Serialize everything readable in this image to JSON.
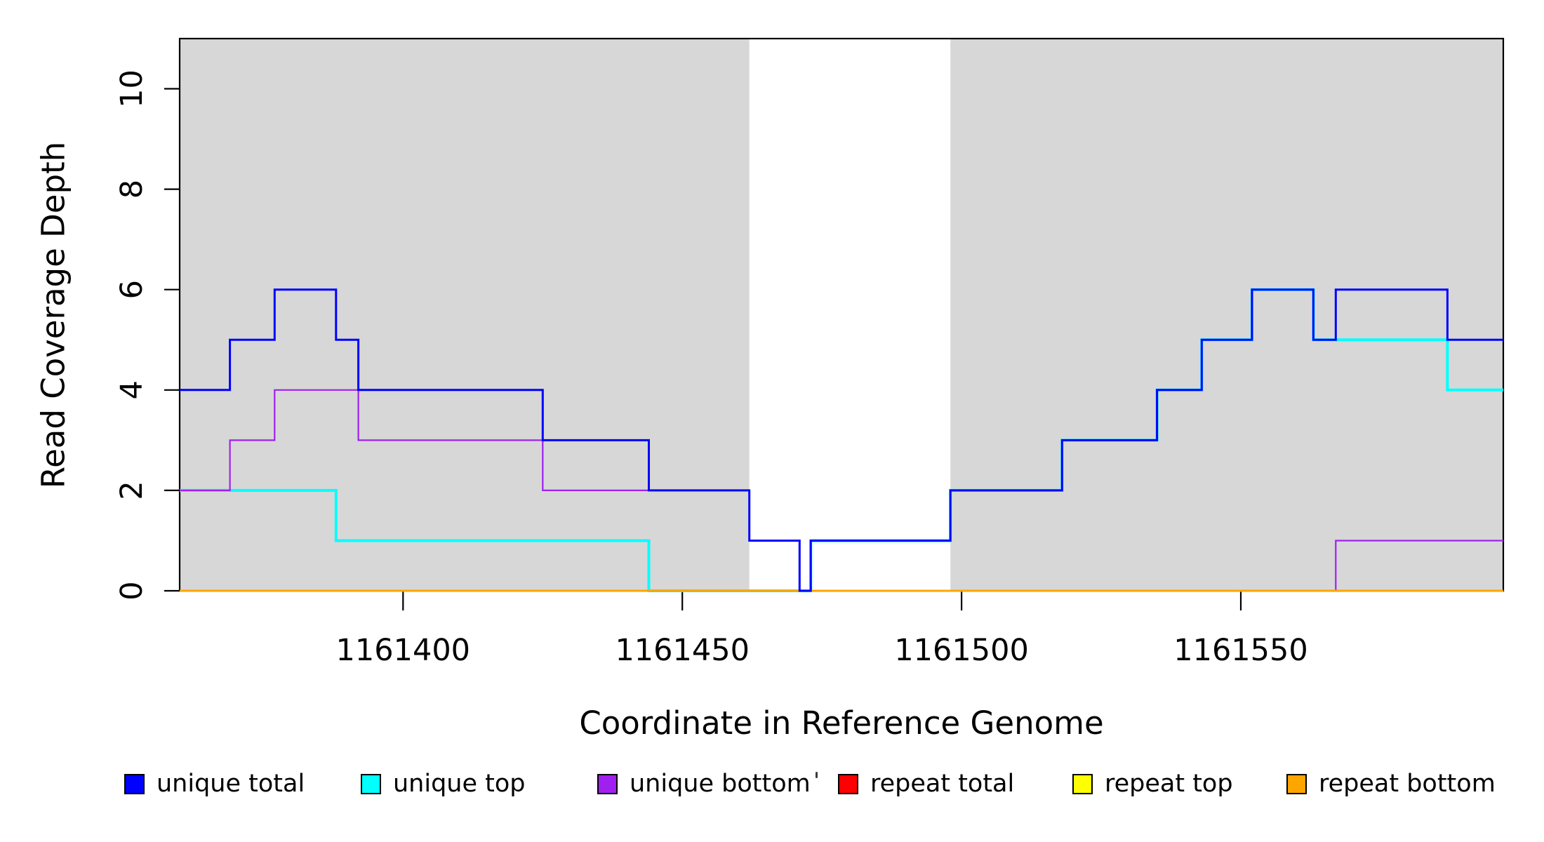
{
  "chart_data": {
    "type": "step",
    "title": "",
    "xlabel": "Coordinate in Reference Genome",
    "ylabel": "Read Coverage Depth",
    "x_range": [
      1161360,
      1161597
    ],
    "y_range": [
      0,
      11
    ],
    "x_ticks": [
      1161400,
      1161450,
      1161500,
      1161550
    ],
    "y_ticks": [
      0,
      2,
      4,
      6,
      8,
      10
    ],
    "grid": false,
    "legend_position": "bottom",
    "shade_color": "#d7d7d7",
    "shaded_regions": [
      {
        "from": 1161360,
        "to": 1161462
      },
      {
        "from": 1161498,
        "to": 1161597
      }
    ],
    "series": [
      {
        "name": "unique total",
        "color": "#0000ff",
        "width": 3.0,
        "z": 6,
        "steps": [
          [
            1161360,
            4
          ],
          [
            1161369,
            5
          ],
          [
            1161377,
            6
          ],
          [
            1161388,
            5
          ],
          [
            1161392,
            4
          ],
          [
            1161425,
            3
          ],
          [
            1161444,
            2
          ],
          [
            1161462,
            1
          ],
          [
            1161471,
            0
          ],
          [
            1161473,
            1
          ],
          [
            1161498,
            2
          ],
          [
            1161518,
            3
          ],
          [
            1161535,
            4
          ],
          [
            1161543,
            5
          ],
          [
            1161552,
            6
          ],
          [
            1161563,
            5
          ],
          [
            1161567,
            6
          ],
          [
            1161587,
            5
          ]
        ]
      },
      {
        "name": "unique top",
        "color": "#00ffff",
        "width": 4.0,
        "z": 3,
        "steps": [
          [
            1161360,
            2
          ],
          [
            1161388,
            1
          ],
          [
            1161444,
            0
          ],
          [
            1161473,
            1
          ],
          [
            1161498,
            2
          ],
          [
            1161518,
            3
          ],
          [
            1161535,
            4
          ],
          [
            1161543,
            5
          ],
          [
            1161552,
            6
          ],
          [
            1161563,
            5
          ],
          [
            1161587,
            4
          ]
        ]
      },
      {
        "name": "unique bottom",
        "color": "#a020f0",
        "width": 2.2,
        "z": 4,
        "steps": [
          [
            1161360,
            2
          ],
          [
            1161369,
            3
          ],
          [
            1161377,
            4
          ],
          [
            1161392,
            3
          ],
          [
            1161425,
            2
          ],
          [
            1161462,
            1
          ],
          [
            1161471,
            0
          ],
          [
            1161567,
            1
          ]
        ]
      },
      {
        "name": "repeat total",
        "color": "#ff0000",
        "width": 3.0,
        "z": 1,
        "steps": [
          [
            1161360,
            0
          ]
        ]
      },
      {
        "name": "repeat top",
        "color": "#ffff00",
        "width": 3.0,
        "z": 2,
        "steps": [
          [
            1161360,
            0
          ]
        ]
      },
      {
        "name": "repeat bottom",
        "color": "#ffa500",
        "width": 3.0,
        "z": 5,
        "steps": [
          [
            1161360,
            0
          ]
        ]
      }
    ]
  },
  "legend": {
    "items": [
      {
        "label": "unique total",
        "color": "#0000ff"
      },
      {
        "label": "unique top",
        "color": "#00ffff"
      },
      {
        "label": "unique bottom",
        "color": "#a020f0"
      },
      {
        "label": "repeat total",
        "color": "#ff0000"
      },
      {
        "label": "repeat top",
        "color": "#ffff00"
      },
      {
        "label": "repeat bottom",
        "color": "#ffa500"
      }
    ]
  },
  "annotations": {
    "stray_mark": "."
  }
}
